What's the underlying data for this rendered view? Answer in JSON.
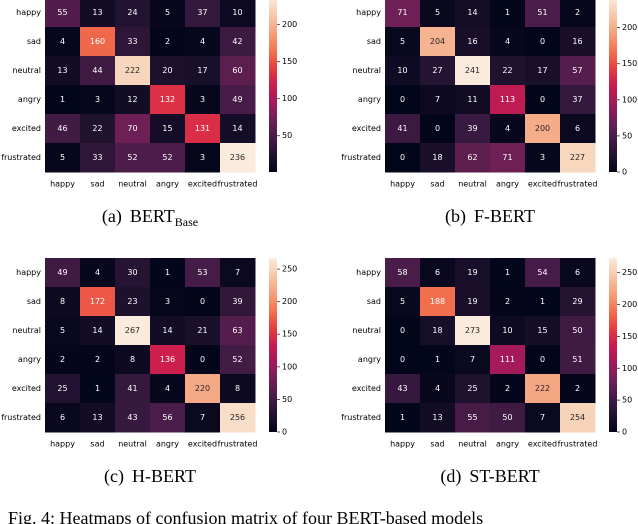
{
  "chart_data": [
    {
      "type": "heatmap",
      "caption": "(a)",
      "title": "BERT",
      "title_sub": "Base",
      "colormap": "rocket",
      "x_categories": [
        "happy",
        "sad",
        "neutral",
        "angry",
        "excited",
        "frustrated"
      ],
      "y_categories": [
        "happy",
        "sad",
        "neutral",
        "angry",
        "excited",
        "frustrated"
      ],
      "values": [
        [
          55,
          13,
          24,
          5,
          37,
          10
        ],
        [
          4,
          160,
          33,
          2,
          4,
          42
        ],
        [
          13,
          44,
          222,
          20,
          17,
          60
        ],
        [
          1,
          3,
          12,
          132,
          3,
          49
        ],
        [
          46,
          22,
          70,
          15,
          131,
          14
        ],
        [
          5,
          33,
          52,
          52,
          3,
          236
        ]
      ],
      "zlim": [
        1,
        236
      ],
      "zticks": [
        50,
        100,
        150,
        200
      ]
    },
    {
      "type": "heatmap",
      "caption": "(b)",
      "title": "F-BERT",
      "colormap": "rocket",
      "x_categories": [
        "happy",
        "sad",
        "neutral",
        "angry",
        "excited",
        "frustrated"
      ],
      "y_categories": [
        "happy",
        "sad",
        "neutral",
        "angry",
        "excited",
        "frustrated"
      ],
      "values": [
        [
          71,
          5,
          14,
          1,
          51,
          2
        ],
        [
          5,
          204,
          16,
          4,
          0,
          16
        ],
        [
          10,
          27,
          241,
          22,
          17,
          57
        ],
        [
          0,
          7,
          11,
          113,
          0,
          37
        ],
        [
          41,
          0,
          39,
          4,
          200,
          6
        ],
        [
          0,
          18,
          62,
          71,
          3,
          227
        ]
      ],
      "zlim": [
        0,
        241
      ],
      "zticks": [
        0,
        50,
        100,
        150,
        200
      ]
    },
    {
      "type": "heatmap",
      "caption": "(c)",
      "title": "H-BERT",
      "colormap": "rocket",
      "x_categories": [
        "happy",
        "sad",
        "neutral",
        "angry",
        "excited",
        "frustrated"
      ],
      "y_categories": [
        "happy",
        "sad",
        "neutral",
        "angry",
        "excited",
        "frustrated"
      ],
      "values": [
        [
          49,
          4,
          30,
          1,
          53,
          7
        ],
        [
          8,
          172,
          23,
          3,
          0,
          39
        ],
        [
          5,
          14,
          267,
          14,
          21,
          63
        ],
        [
          2,
          2,
          8,
          136,
          0,
          52
        ],
        [
          25,
          1,
          41,
          4,
          220,
          8
        ],
        [
          6,
          13,
          43,
          56,
          7,
          256
        ]
      ],
      "zlim": [
        0,
        267
      ],
      "zticks": [
        0,
        50,
        100,
        150,
        200,
        250
      ]
    },
    {
      "type": "heatmap",
      "caption": "(d)",
      "title": "ST-BERT",
      "colormap": "rocket",
      "x_categories": [
        "happy",
        "sad",
        "neutral",
        "angry",
        "excited",
        "frustrated"
      ],
      "y_categories": [
        "happy",
        "sad",
        "neutral",
        "angry",
        "excited",
        "frustrated"
      ],
      "values": [
        [
          58,
          6,
          19,
          1,
          54,
          6
        ],
        [
          5,
          188,
          19,
          2,
          1,
          29
        ],
        [
          0,
          18,
          273,
          10,
          15,
          50
        ],
        [
          0,
          1,
          7,
          111,
          0,
          51
        ],
        [
          43,
          4,
          25,
          2,
          222,
          2
        ],
        [
          1,
          13,
          55,
          50,
          7,
          254
        ]
      ],
      "zlim": [
        0,
        273
      ],
      "zticks": [
        0,
        50,
        100,
        150,
        200,
        250
      ]
    }
  ],
  "figure_caption": "Fig. 4: Heatmaps of confusion matrix of four BERT-based models"
}
